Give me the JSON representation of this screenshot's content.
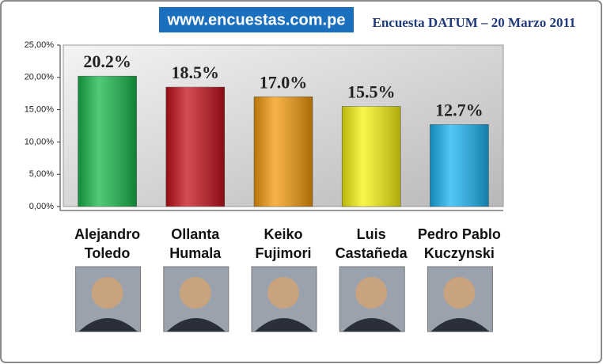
{
  "chart_data": {
    "type": "bar",
    "title": "www.encuestas.com.pe",
    "subtitle": "Encuesta DATUM – 20 Marzo 2011",
    "categories": [
      "Alejandro Toledo",
      "Ollanta Humala",
      "Keiko Fujimori",
      "Luis Castañeda",
      "Pedro Pablo Kuczynski"
    ],
    "values": [
      20.2,
      18.5,
      17.0,
      15.5,
      12.7
    ],
    "value_labels": [
      "20.2%",
      "18.5%",
      "17.0%",
      "15.5%",
      "12.7%"
    ],
    "colors": [
      "#17b84a",
      "#c4101a",
      "#f39a0c",
      "#f7f20f",
      "#19b4f2"
    ],
    "ylim": [
      0,
      25
    ],
    "yticks": [
      {
        "value": 0,
        "label": "0,00%"
      },
      {
        "value": 5,
        "label": "5,00%"
      },
      {
        "value": 10,
        "label": "10,00%"
      },
      {
        "value": 15,
        "label": "15,00%"
      },
      {
        "value": 20,
        "label": "20,00%"
      },
      {
        "value": 25,
        "label": "25,00%"
      }
    ],
    "grid": false
  }
}
